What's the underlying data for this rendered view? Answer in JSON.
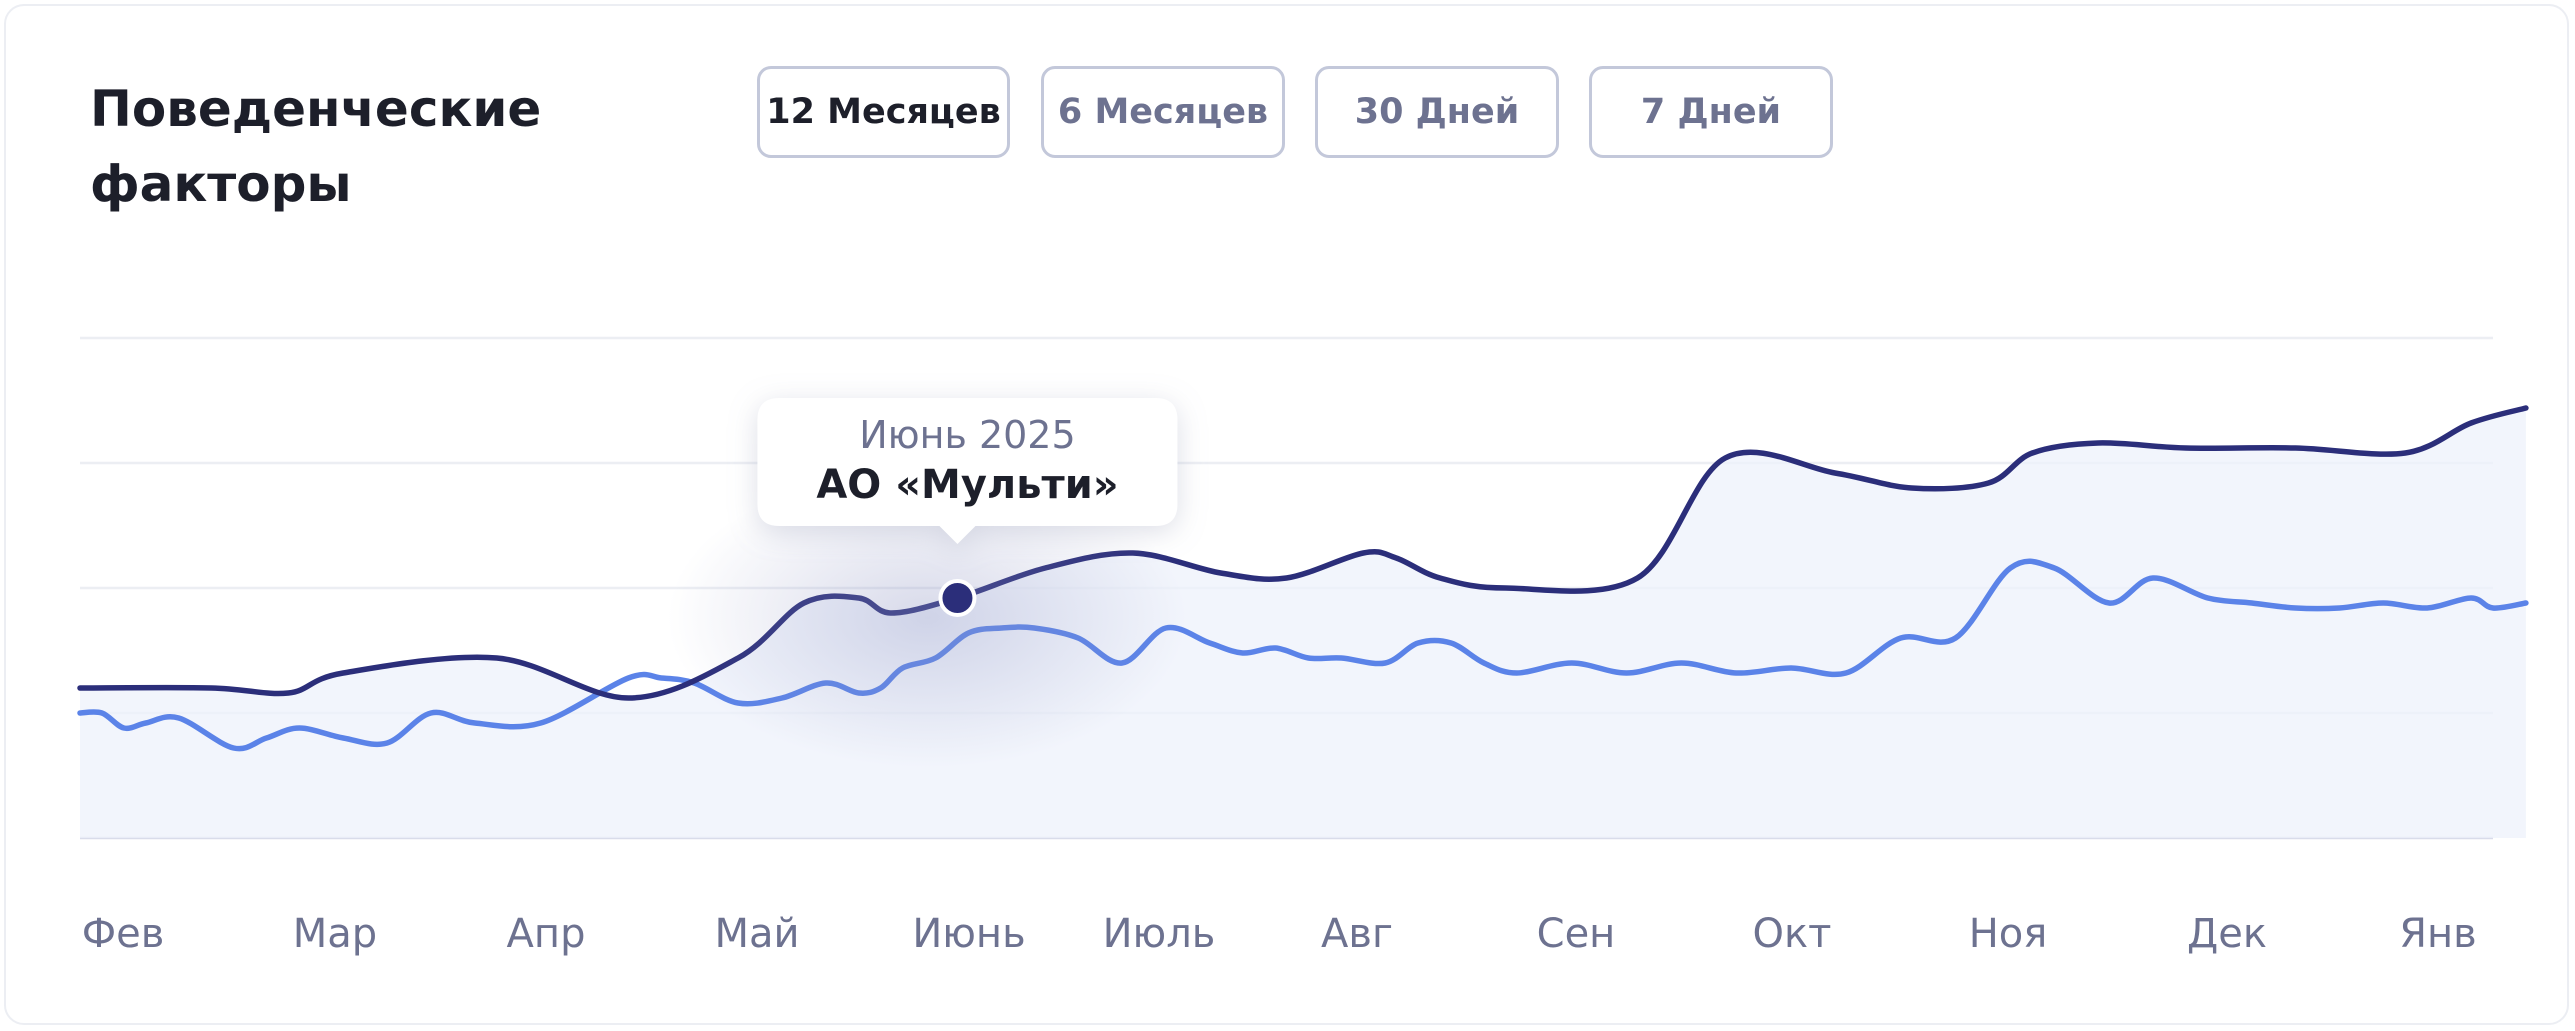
{
  "header": {
    "title": "Поведенческие факторы"
  },
  "tabs": [
    {
      "label": "12 Месяцев",
      "active": true
    },
    {
      "label": "6 Месяцев",
      "active": false
    },
    {
      "label": "30 Дней",
      "active": false
    },
    {
      "label": "7 Дней",
      "active": false
    }
  ],
  "colors": {
    "series_dark": "#2b2e7a",
    "series_light": "#5b83e8",
    "area_fill": "#eef1fb",
    "grid": "#eceef3"
  },
  "tooltip": {
    "date": "Июнь 2025",
    "company": "АО «Мульти»",
    "category_index": 4,
    "series_index": 0
  },
  "chart_data": {
    "type": "line",
    "title": "",
    "xlabel": "",
    "ylabel": "",
    "categories": [
      "Фев",
      "Мар",
      "Апр",
      "Май",
      "Июнь",
      "Июль",
      "Авг",
      "Сен",
      "Окт",
      "Ноя",
      "Дек",
      "Янв"
    ],
    "ylim": [
      0,
      100
    ],
    "grid": true,
    "series": [
      {
        "name": "",
        "color": "#2b2e7a",
        "x": [
          0,
          0.6,
          0.95,
          1.2,
          1.9,
          2.5,
          3.0,
          3.3,
          3.55,
          3.7,
          4.0,
          4.4,
          4.8,
          5.2,
          5.5,
          5.85,
          6.0,
          6.2,
          6.5,
          7.1,
          7.5,
          8.0,
          8.35,
          8.7,
          8.9,
          9.2,
          9.6,
          10.1,
          10.6,
          10.9,
          11.15
        ],
        "y": [
          30,
          30,
          29,
          33,
          36,
          28,
          36,
          47,
          48,
          45,
          48,
          54,
          57,
          53,
          52,
          57,
          56,
          52,
          50,
          52,
          76,
          73,
          70,
          71,
          77,
          79,
          78,
          78,
          77,
          83,
          86
        ]
      },
      {
        "name": "",
        "color": "#5b83e8",
        "x": [
          0,
          0.1,
          0.2,
          0.3,
          0.45,
          0.7,
          0.85,
          1.0,
          1.2,
          1.4,
          1.6,
          1.8,
          2.1,
          2.5,
          2.65,
          2.8,
          3.0,
          3.2,
          3.4,
          3.55,
          3.65,
          3.75,
          3.9,
          4.05,
          4.2,
          4.35,
          4.55,
          4.75,
          4.95,
          5.15,
          5.3,
          5.45,
          5.6,
          5.75,
          5.95,
          6.1,
          6.25,
          6.4,
          6.55,
          6.8,
          7.05,
          7.3,
          7.55,
          7.8,
          8.05,
          8.3,
          8.55,
          8.8,
          9.0,
          9.25,
          9.45,
          9.7,
          9.9,
          10.1,
          10.3,
          10.5,
          10.7,
          10.9,
          11.0,
          11.15
        ],
        "y": [
          25,
          25,
          22,
          23,
          24,
          18,
          20,
          22,
          20,
          19,
          25,
          23,
          23,
          32,
          32,
          31,
          27,
          28,
          31,
          29,
          30,
          34,
          36,
          41,
          42,
          42,
          40,
          35,
          42,
          39,
          37,
          38,
          36,
          36,
          35,
          39,
          39,
          35,
          33,
          35,
          33,
          35,
          33,
          34,
          33,
          40,
          40,
          54,
          54,
          47,
          52,
          48,
          47,
          46,
          46,
          47,
          46,
          48,
          46,
          47
        ]
      }
    ]
  }
}
